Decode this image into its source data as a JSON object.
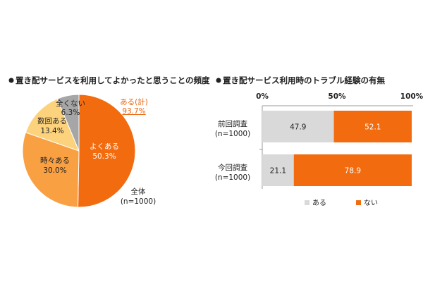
{
  "chart_data": [
    {
      "type": "pie",
      "title": "置き配サービスを利用してよかったと思うことの頻度",
      "slices": [
        {
          "label": "よくある",
          "value": 50.3,
          "value_text": "50.3%",
          "color": "#f26b0f"
        },
        {
          "label": "時々ある",
          "value": 30.0,
          "value_text": "30.0%",
          "color": "#f9a042"
        },
        {
          "label": "数回ある",
          "value": 13.4,
          "value_text": "13.4%",
          "color": "#fcd27c"
        },
        {
          "label": "全くない",
          "value": 6.3,
          "value_text": "6.3%",
          "color": "#a6a6a6"
        }
      ],
      "total_annotation": {
        "label": "ある(計)",
        "value_text": "93.7%",
        "color": "#e8650c"
      },
      "base_label": {
        "line1": "全体",
        "line2": "(n=1000)"
      }
    },
    {
      "type": "bar",
      "orientation": "horizontal-stacked",
      "title": "置き配サービス利用時のトラブル経験の有無",
      "xlim": [
        0,
        100
      ],
      "x_ticks": [
        "0%",
        "50%",
        "100%"
      ],
      "categories": [
        {
          "line1": "前回調査",
          "line2": "(n=1000)"
        },
        {
          "line1": "今回調査",
          "line2": "(n=1000)"
        }
      ],
      "series": [
        {
          "name": "ある",
          "values": [
            47.9,
            21.1
          ],
          "labels": [
            "47.9",
            "21.1"
          ],
          "color": "#d9d9d9"
        },
        {
          "name": "ない",
          "values": [
            52.1,
            78.9
          ],
          "labels": [
            "52.1",
            "78.9"
          ],
          "color": "#f26b0f"
        }
      ],
      "legend_position": "bottom"
    }
  ]
}
